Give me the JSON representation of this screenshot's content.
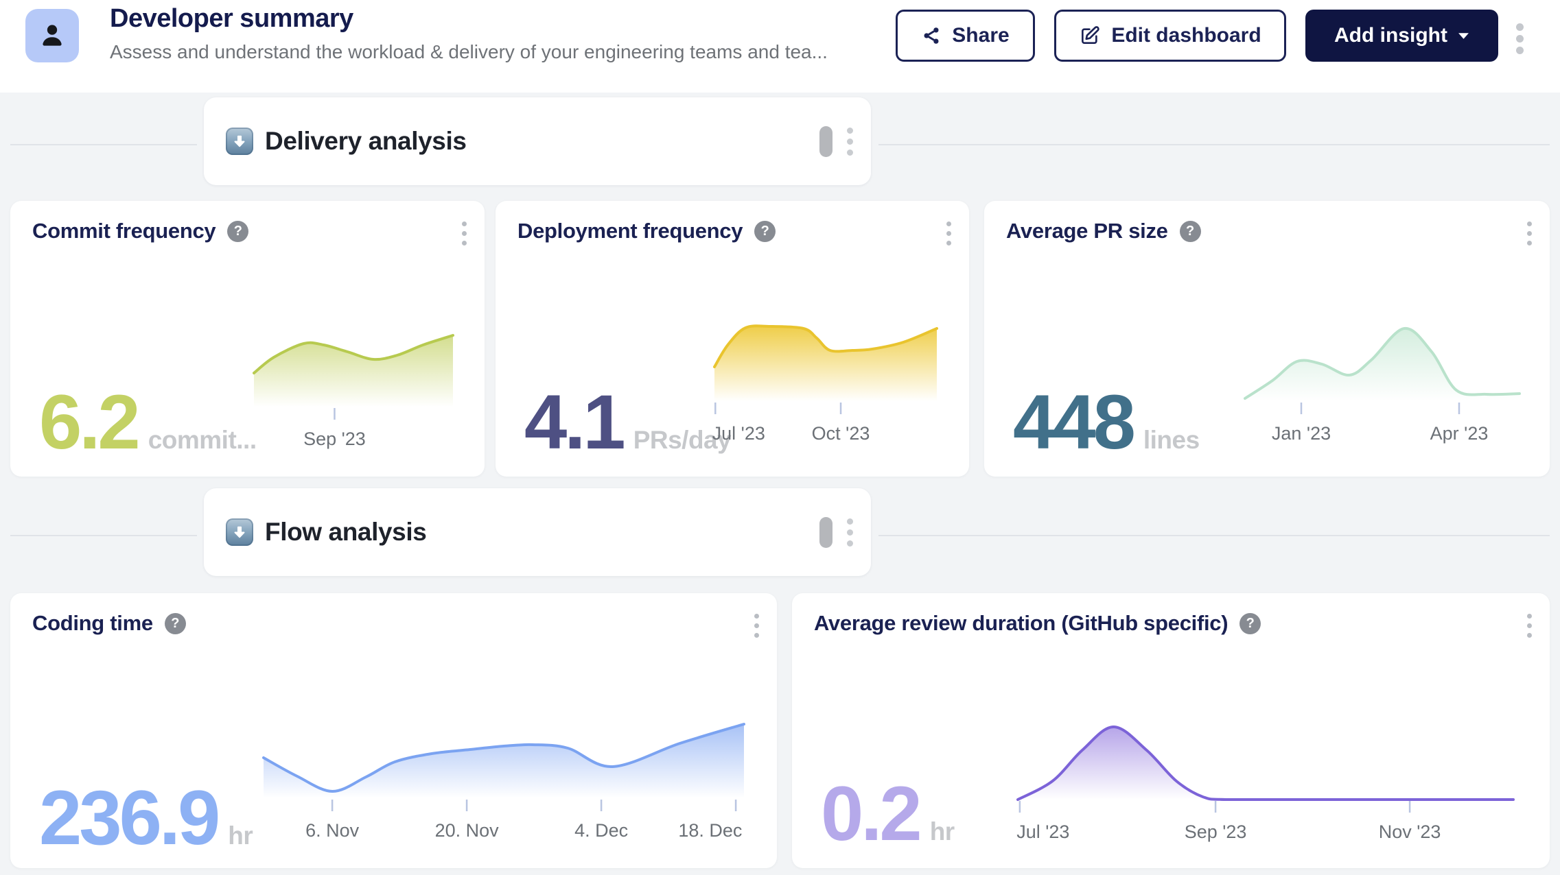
{
  "ui": {
    "help_glyph": "?"
  },
  "header": {
    "title": "Developer summary",
    "subtitle": "Assess and understand the workload & delivery of your engineering teams and tea...",
    "buttons": {
      "share": "Share",
      "edit_dashboard": "Edit dashboard",
      "add_insight": "Add insight"
    },
    "accent_color": "#1b2255",
    "primary_button_bg": "#0f1542",
    "avatar_bg": "#b6c9f8"
  },
  "sections": [
    {
      "emoji": "⬇️",
      "title": "Delivery analysis"
    },
    {
      "emoji": "⬇️",
      "title": "Flow analysis"
    }
  ],
  "cards": [
    {
      "title": "Commit frequency",
      "value": "6.2",
      "unit": "commit...",
      "value_style": "color:#c3d164"
    },
    {
      "title": "Deployment frequency",
      "value": "4.1",
      "unit": "PRs/day",
      "value_style": "color:#4e5083"
    },
    {
      "title": "Average PR size",
      "value": "448",
      "unit": "lines",
      "value_style": "color:#41708a"
    },
    {
      "title": "Coding time",
      "value": "236.9",
      "unit": "hr",
      "value_style": "color:#8db1f4"
    },
    {
      "title": "Average review duration (GitHub specific)",
      "value": "0.2",
      "unit": "hr",
      "value_style": "color:#b5a9ea"
    }
  ],
  "chart_data": [
    {
      "type": "area",
      "metric": "Commit frequency",
      "current_value": 6.2,
      "unit_label": "commit...",
      "x_ticks": [
        "Sep '23"
      ],
      "line_color": "#b7ca4f",
      "fill_color": "#c8d572",
      "legend": "none",
      "grid": false,
      "render": {
        "fill_opacity": 0.8,
        "points": [
          [
            0,
            63
          ],
          [
            30,
            40
          ],
          [
            75,
            20
          ],
          [
            105,
            22
          ],
          [
            141,
            32
          ],
          [
            180,
            43
          ],
          [
            216,
            37
          ],
          [
            255,
            22
          ],
          [
            300,
            8
          ]
        ],
        "ticks": [
          {
            "label": "Sep '23",
            "f": 0.405,
            "align": "center"
          }
        ]
      }
    },
    {
      "type": "area",
      "metric": "Deployment frequency",
      "current_value": 4.1,
      "unit_label": "PRs/day",
      "x_ticks": [
        "Jul '23",
        "Oct '23"
      ],
      "line_color": "#e9c42e",
      "fill_color": "#eecb3f",
      "legend": "none",
      "grid": false,
      "render": {
        "fill_opacity": 0.95,
        "points": [
          [
            0,
            62
          ],
          [
            18,
            30
          ],
          [
            42,
            5
          ],
          [
            75,
            3
          ],
          [
            120,
            6
          ],
          [
            138,
            20
          ],
          [
            156,
            38
          ],
          [
            186,
            38
          ],
          [
            213,
            36
          ],
          [
            255,
            26
          ],
          [
            300,
            6
          ]
        ],
        "ticks": [
          {
            "label": "Jul '23",
            "f": 0.004,
            "align": "left"
          },
          {
            "label": "Oct '23",
            "f": 0.568,
            "align": "center"
          }
        ]
      }
    },
    {
      "type": "area",
      "metric": "Average PR size",
      "current_value": 448,
      "unit_label": "lines",
      "x_ticks": [
        "Jan '23",
        "Apr '23"
      ],
      "line_color": "#b9e2cb",
      "fill_color": "#cdebd9",
      "legend": "none",
      "grid": false,
      "render": {
        "fill_opacity": 0.85,
        "points": [
          [
            0,
            108
          ],
          [
            30,
            82
          ],
          [
            57,
            54
          ],
          [
            84,
            58
          ],
          [
            114,
            74
          ],
          [
            138,
            52
          ],
          [
            174,
            6
          ],
          [
            204,
            40
          ],
          [
            231,
            96
          ],
          [
            264,
            102
          ],
          [
            300,
            101
          ]
        ],
        "ticks": [
          {
            "label": "Jan '23",
            "f": 0.205,
            "align": "center"
          },
          {
            "label": "Apr '23",
            "f": 0.78,
            "align": "center"
          }
        ]
      }
    },
    {
      "type": "area",
      "metric": "Coding time",
      "current_value": 236.9,
      "unit_label": "hr",
      "x_ticks": [
        "6. Nov",
        "20. Nov",
        "4. Dec",
        "18. Dec"
      ],
      "line_color": "#7ba3f1",
      "fill_color": "#9ebbf5",
      "legend": "none",
      "grid": false,
      "render": {
        "fill_opacity": 0.9,
        "points": [
          [
            0,
            53
          ],
          [
            21,
            80
          ],
          [
            43,
            102
          ],
          [
            64,
            81
          ],
          [
            82,
            59
          ],
          [
            105,
            47
          ],
          [
            129,
            41
          ],
          [
            150,
            36
          ],
          [
            168,
            34
          ],
          [
            190,
            39
          ],
          [
            218,
            66
          ],
          [
            260,
            32
          ],
          [
            300,
            4
          ]
        ],
        "ticks": [
          {
            "label": "6. Nov",
            "f": 0.143,
            "align": "center"
          },
          {
            "label": "20. Nov",
            "f": 0.423,
            "align": "center"
          },
          {
            "label": "4. Dec",
            "f": 0.703,
            "align": "center"
          },
          {
            "label": "18. Dec",
            "f": 0.983,
            "align": "right"
          }
        ]
      }
    },
    {
      "type": "area",
      "metric": "Average review duration (GitHub specific)",
      "current_value": 0.2,
      "unit_label": "hr",
      "x_ticks": [
        "Jul '23",
        "Sep '23",
        "Nov '23"
      ],
      "line_color": "#7c63d8",
      "fill_color": "#a995e5",
      "legend": "none",
      "grid": false,
      "render": {
        "fill_opacity": 0.85,
        "points": [
          [
            0,
            112
          ],
          [
            21,
            85
          ],
          [
            39,
            40
          ],
          [
            58,
            6
          ],
          [
            78,
            40
          ],
          [
            96,
            85
          ],
          [
            112,
            108
          ],
          [
            126,
            112
          ],
          [
            180,
            112
          ],
          [
            240,
            112
          ],
          [
            300,
            112
          ]
        ],
        "ticks": [
          {
            "label": "Jul '23",
            "f": 0.004,
            "align": "left"
          },
          {
            "label": "Sep '23",
            "f": 0.399,
            "align": "center"
          },
          {
            "label": "Nov '23",
            "f": 0.791,
            "align": "center"
          }
        ]
      }
    }
  ]
}
